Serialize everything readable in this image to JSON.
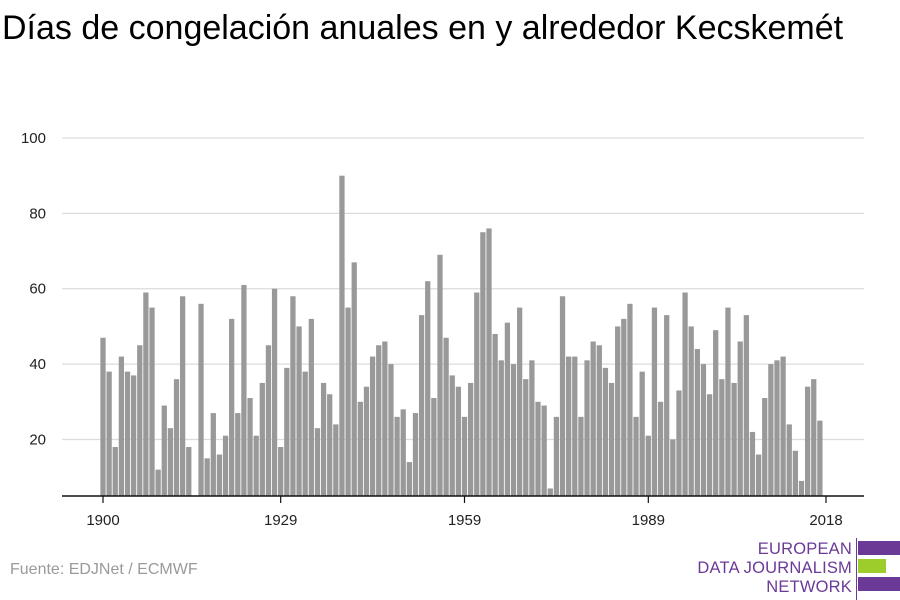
{
  "title": "Días de congelación anuales en y alrededor Kecskemét",
  "source": "Fuente: EDJNet / ECMWF",
  "logo": {
    "lines": [
      "EUROPEAN",
      "DATA JOURNALISM",
      "NETWORK"
    ],
    "colors": {
      "primary": "#6b3a97",
      "accent": "#9ccd2a"
    }
  },
  "chart_data": {
    "type": "bar",
    "x_start": 1900,
    "x_end": 2018,
    "xticks": [
      1900,
      1929,
      1959,
      1989,
      2018
    ],
    "yticks": [
      20,
      40,
      60,
      80,
      100
    ],
    "ylim": [
      5,
      100
    ],
    "grid": true,
    "bar_color": "#999999",
    "values": [
      47,
      38,
      18,
      42,
      38,
      37,
      45,
      59,
      55,
      12,
      29,
      23,
      36,
      58,
      18,
      5,
      56,
      15,
      27,
      16,
      21,
      52,
      27,
      61,
      31,
      21,
      35,
      45,
      60,
      18,
      39,
      58,
      50,
      38,
      52,
      23,
      35,
      32,
      24,
      90,
      55,
      67,
      30,
      34,
      42,
      45,
      46,
      40,
      26,
      28,
      14,
      27,
      53,
      62,
      31,
      69,
      47,
      37,
      34,
      26,
      35,
      59,
      75,
      76,
      48,
      41,
      51,
      40,
      55,
      36,
      41,
      30,
      29,
      7,
      26,
      58,
      42,
      42,
      26,
      41,
      46,
      45,
      39,
      35,
      50,
      52,
      56,
      26,
      38,
      21,
      55,
      30,
      53,
      20,
      33,
      59,
      50,
      44,
      40,
      32,
      49,
      36,
      55,
      35,
      46,
      53,
      22,
      16,
      31,
      40,
      41,
      42,
      24,
      17,
      9,
      34,
      36,
      25
    ]
  }
}
